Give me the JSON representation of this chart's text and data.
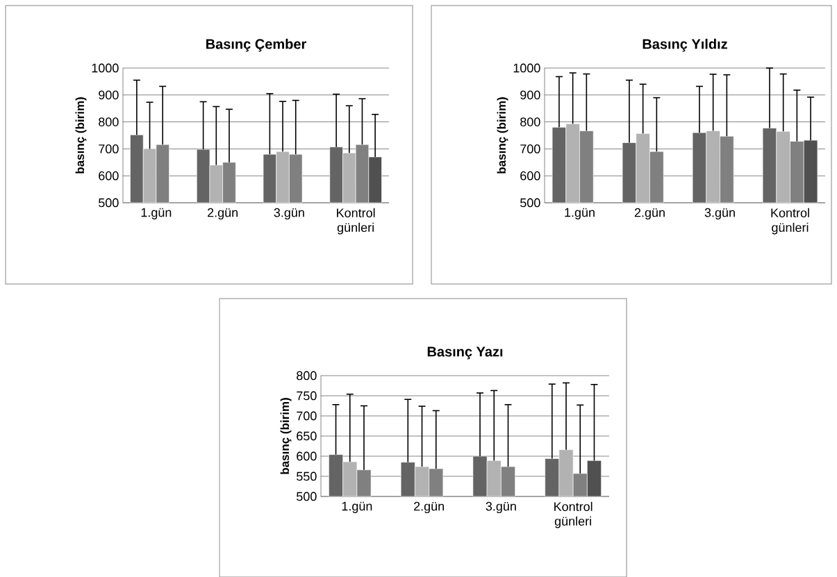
{
  "chart_data": [
    {
      "type": "bar",
      "title": "Basınç Çember",
      "ylabel": "basınç (birim)",
      "categories": [
        "1.gün",
        "2.gün",
        "3.gün",
        "Kontrol günleri"
      ],
      "ylim": [
        500,
        1000
      ],
      "yticks": [
        500,
        600,
        700,
        800,
        900,
        1000
      ],
      "grid": "y",
      "series": [
        {
          "color": "#646464",
          "values": [
            752,
            698,
            680,
            707
          ],
          "errors": [
            [
              752,
              955
            ],
            [
              698,
              875
            ],
            [
              680,
              905
            ],
            [
              707,
              903
            ]
          ]
        },
        {
          "color": "#b2b2b2",
          "values": [
            700,
            640,
            690,
            685
          ],
          "errors": [
            [
              700,
              873
            ],
            [
              640,
              857
            ],
            [
              690,
              876
            ],
            [
              685,
              860
            ]
          ]
        },
        {
          "color": "#808080",
          "values": [
            716,
            650,
            680,
            716
          ],
          "errors": [
            [
              716,
              932
            ],
            [
              650,
              847
            ],
            [
              680,
              880
            ],
            [
              716,
              886
            ]
          ]
        },
        {
          "color": "#505050",
          "values": [
            null,
            null,
            null,
            670
          ],
          "errors": [
            null,
            null,
            null,
            [
              670,
              828
            ]
          ]
        }
      ]
    },
    {
      "type": "bar",
      "title": "Basınç Yıldız",
      "ylabel": "basınç (birim)",
      "categories": [
        "1.gün",
        "2.gün",
        "3.gün",
        "Kontrol günleri"
      ],
      "ylim": [
        500,
        1000
      ],
      "yticks": [
        500,
        600,
        700,
        800,
        900,
        1000
      ],
      "grid": "y",
      "series": [
        {
          "color": "#646464",
          "values": [
            780,
            723,
            760,
            777
          ],
          "errors": [
            [
              780,
              968
            ],
            [
              723,
              955
            ],
            [
              760,
              932
            ],
            [
              777,
              1000
            ]
          ]
        },
        {
          "color": "#b2b2b2",
          "values": [
            793,
            757,
            767,
            765
          ],
          "errors": [
            [
              793,
              982
            ],
            [
              757,
              940
            ],
            [
              767,
              977
            ],
            [
              765,
              978
            ]
          ]
        },
        {
          "color": "#808080",
          "values": [
            767,
            690,
            747,
            728
          ],
          "errors": [
            [
              767,
              978
            ],
            [
              690,
              890
            ],
            [
              747,
              975
            ],
            [
              728,
              918
            ]
          ]
        },
        {
          "color": "#505050",
          "values": [
            null,
            null,
            null,
            732
          ],
          "errors": [
            null,
            null,
            null,
            [
              732,
              892
            ]
          ]
        }
      ]
    },
    {
      "type": "bar",
      "title": "Basınç Yazı",
      "ylabel": "basınç (birim)",
      "categories": [
        "1.gün",
        "2.gün",
        "3.gün",
        "Kontrol günleri"
      ],
      "ylim": [
        500,
        800
      ],
      "yticks": [
        500,
        550,
        600,
        650,
        700,
        750,
        800
      ],
      "grid": "y",
      "series": [
        {
          "color": "#646464",
          "values": [
            604,
            585,
            600,
            594
          ],
          "errors": [
            [
              604,
              728
            ],
            [
              585,
              741
            ],
            [
              600,
              757
            ],
            [
              594,
              779
            ]
          ]
        },
        {
          "color": "#b2b2b2",
          "values": [
            586,
            574,
            589,
            616
          ],
          "errors": [
            [
              586,
              754
            ],
            [
              574,
              724
            ],
            [
              589,
              763
            ],
            [
              616,
              782
            ]
          ]
        },
        {
          "color": "#808080",
          "values": [
            566,
            569,
            574,
            557
          ],
          "errors": [
            [
              566,
              725
            ],
            [
              569,
              713
            ],
            [
              574,
              728
            ],
            [
              557,
              727
            ]
          ]
        },
        {
          "color": "#505050",
          "values": [
            null,
            null,
            null,
            589
          ],
          "errors": [
            null,
            null,
            null,
            [
              589,
              778
            ]
          ]
        }
      ]
    }
  ]
}
